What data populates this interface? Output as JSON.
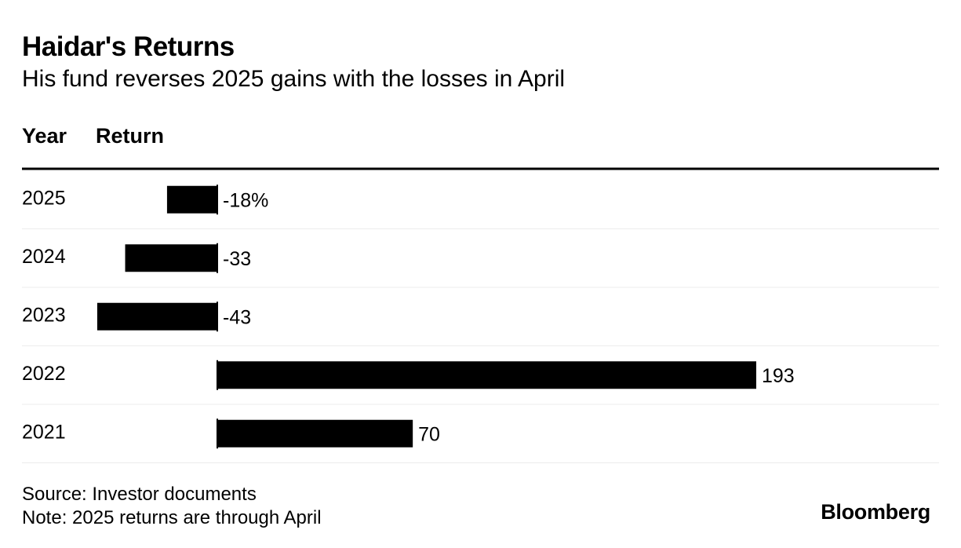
{
  "title": "Haidar's Returns",
  "subtitle": "His fund reverses 2025 gains with the losses in April",
  "columns": {
    "year": "Year",
    "return": "Return"
  },
  "footer": {
    "source": "Source: Investor documents",
    "note": "Note: 2025 returns are through April",
    "brand": "Bloomberg"
  },
  "chart_data": {
    "type": "bar",
    "orientation": "horizontal",
    "categories": [
      "2025",
      "2024",
      "2023",
      "2022",
      "2021"
    ],
    "values": [
      -18,
      -33,
      -43,
      193,
      70
    ],
    "value_labels": [
      "-18%",
      "-33",
      "-43",
      "193",
      "70"
    ],
    "unit": "%",
    "bar_color": "#000000",
    "xlim": [
      -43,
      193
    ]
  }
}
